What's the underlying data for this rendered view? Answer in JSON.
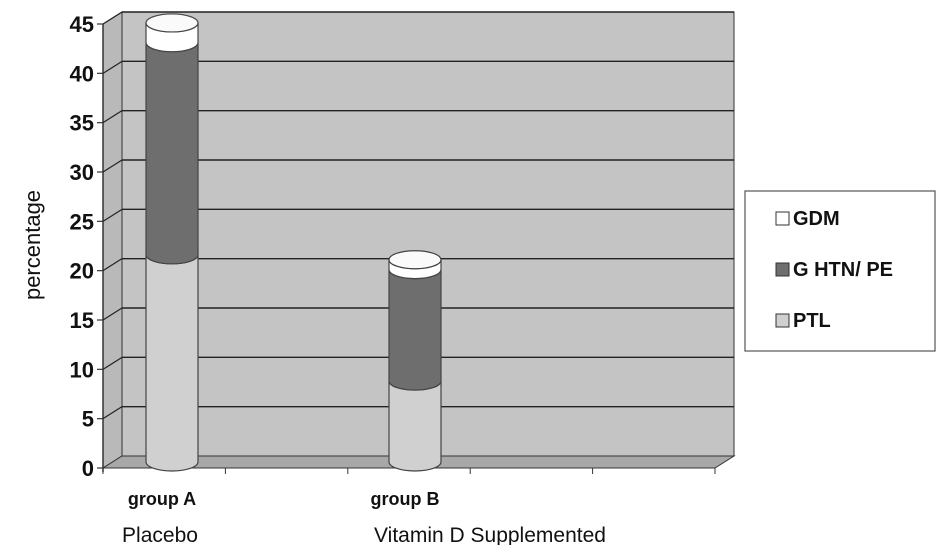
{
  "chart_data": {
    "type": "bar",
    "stacked": true,
    "style": "3d-cylinder",
    "categories": [
      "group A",
      "group B"
    ],
    "category_sublabels": [
      "Placebo",
      "Vitamin D Supplemented"
    ],
    "series": [
      {
        "name": "PTL",
        "values": [
          21,
          8.2
        ],
        "color": "#d0d0d0"
      },
      {
        "name": "G HTN/ PE",
        "values": [
          21.5,
          11.3
        ],
        "color": "#6e6e6e"
      },
      {
        "name": "GDM",
        "values": [
          2,
          1
        ],
        "color": "#ffffff"
      }
    ],
    "ylabel": "percentage",
    "xlabel": "",
    "ylim": [
      0,
      45
    ],
    "yticks": [
      0,
      5,
      10,
      15,
      20,
      25,
      30,
      35,
      40,
      45
    ],
    "grid": true,
    "legend_position": "right",
    "colors": {
      "wall": "#c4c4c4",
      "floor": "#a8a8a8",
      "gridline": "#222222"
    }
  }
}
